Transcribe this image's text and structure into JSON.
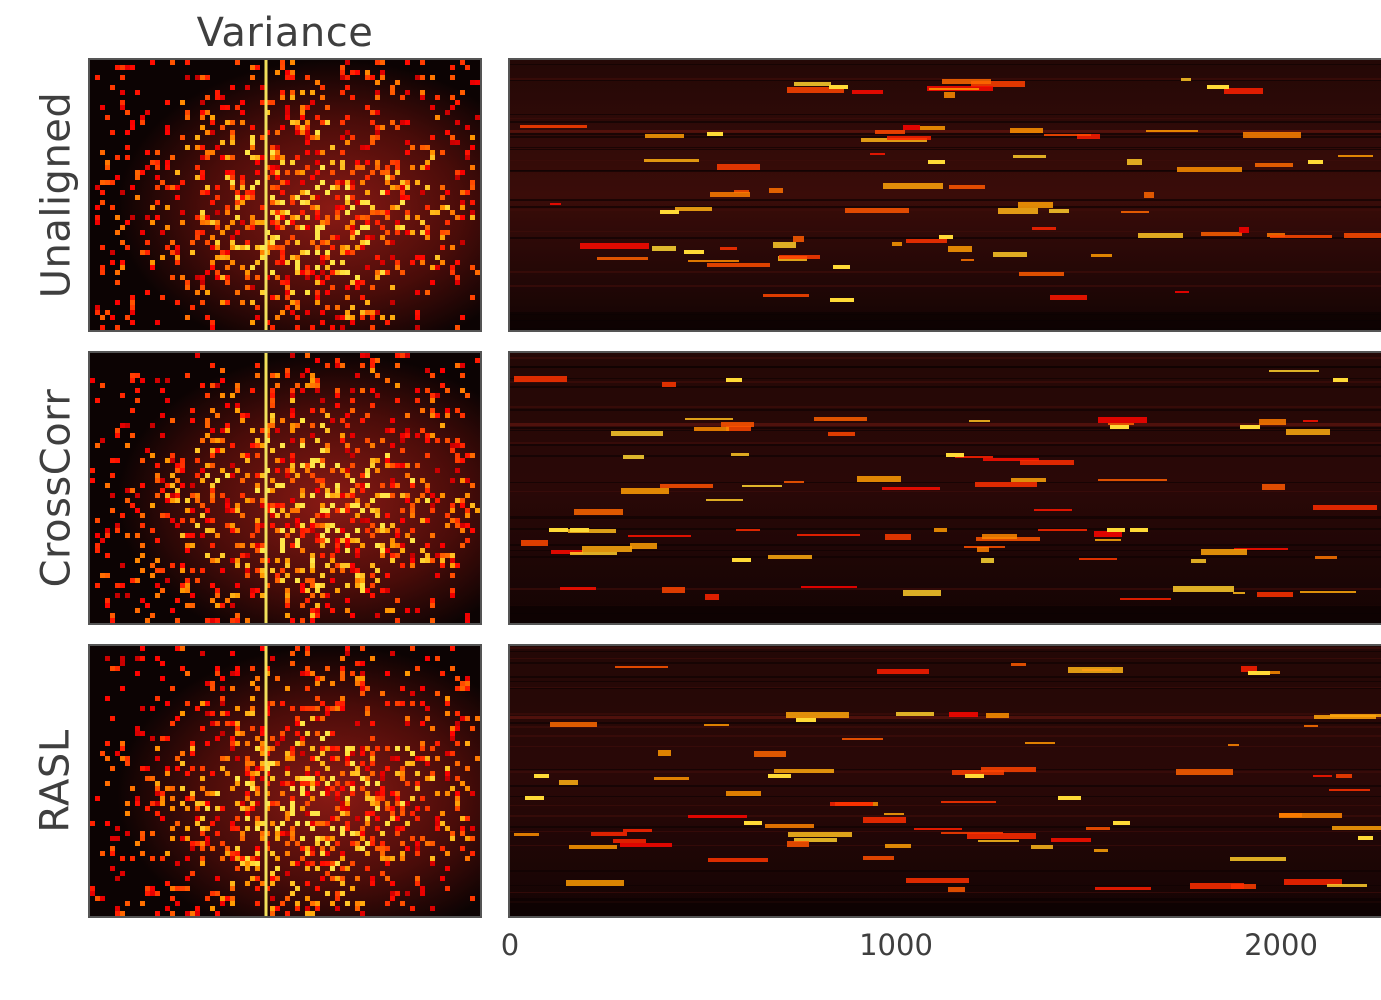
{
  "figure": {
    "column_title": "Variance",
    "rows": [
      {
        "label": "Unaligned"
      },
      {
        "label": "CrossCorr"
      },
      {
        "label": "RASL"
      }
    ],
    "x_axis": {
      "ticks": [
        {
          "label": "0",
          "value": 0
        },
        {
          "label": "1000",
          "value": 1000
        },
        {
          "label": "2000",
          "value": 2000
        }
      ],
      "range": [
        0,
        2260
      ]
    },
    "colors": {
      "colormap": "hot",
      "dark": "#1a0505",
      "red": "#e8251d",
      "bright": "#ffd24a",
      "marker_line": "#f2e05a",
      "frame": "#555555"
    }
  }
}
